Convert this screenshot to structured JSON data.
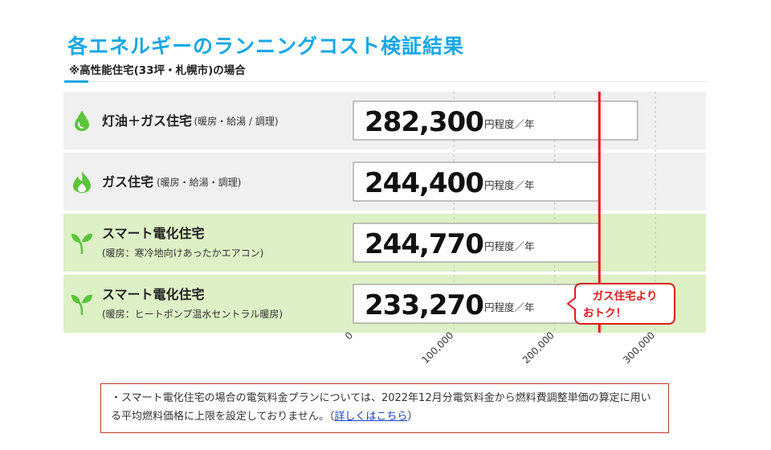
{
  "title": "各エネルギーのランニングコスト検証結果",
  "subtitle": "※高性能住宅(33坪・札幌市)の場合",
  "colors": {
    "title": "#17a8e6",
    "row_gray": "#f0f0f0",
    "row_green": "#ddf0c6",
    "icon_green": "#5cc43a",
    "reference_line": "#dd1c1c",
    "callout": "#dd1c1c"
  },
  "chart_data": {
    "type": "bar",
    "unit_label": "円程度／年",
    "xlim": [
      0,
      300000
    ],
    "tick_labels": [
      "0",
      "100,000",
      "200,000",
      "300,000"
    ],
    "tick_values": [
      0,
      100000,
      200000,
      300000
    ],
    "grid": true,
    "reference_line": {
      "value": 244400
    },
    "rows": [
      {
        "name": "灯油＋ガス住宅",
        "detail": "(暖房・給湯 / 調理)",
        "value": 282300,
        "label": "282,300",
        "icon": "oil-drop-icon",
        "highlight": false
      },
      {
        "name": "ガス住宅",
        "detail": "(暖房・給湯・調理)",
        "value": 244400,
        "label": "244,400",
        "icon": "flame-icon",
        "highlight": false
      },
      {
        "name": "スマート電化住宅",
        "detail": "(暖房：寒冷地向けあったかエアコン)",
        "value": 244770,
        "label": "244,770",
        "icon": "sprout-icon",
        "highlight": true
      },
      {
        "name": "スマート電化住宅",
        "detail": "(暖房：ヒートポンプ温水セントラル暖房)",
        "value": 233270,
        "label": "233,270",
        "icon": "sprout-icon",
        "highlight": true
      }
    ],
    "callout": {
      "text_line1": "ガス住宅より",
      "text_line2": "おトク！",
      "row": 3
    }
  },
  "note": {
    "text": "・スマート電化住宅の場合の電気料金プランについては、2022年12月分電気料金から燃料費調整単価の算定に用いる平均燃料価格に上限を設定しておりません。（",
    "link_text": "詳しくはこちら",
    "suffix": "）"
  }
}
